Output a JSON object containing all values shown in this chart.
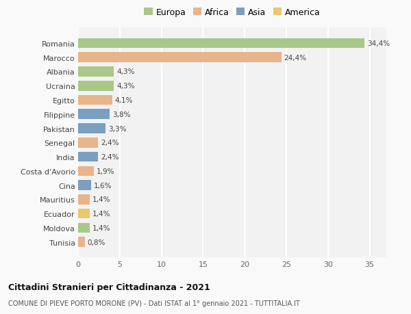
{
  "categories": [
    "Romania",
    "Marocco",
    "Albania",
    "Ucraina",
    "Egitto",
    "Filippine",
    "Pakistan",
    "Senegal",
    "India",
    "Costa d'Avorio",
    "Cina",
    "Mauritius",
    "Ecuador",
    "Moldova",
    "Tunisia"
  ],
  "values": [
    34.4,
    24.4,
    4.3,
    4.3,
    4.1,
    3.8,
    3.3,
    2.4,
    2.4,
    1.9,
    1.6,
    1.4,
    1.4,
    1.4,
    0.8
  ],
  "labels": [
    "34,4%",
    "24,4%",
    "4,3%",
    "4,3%",
    "4,1%",
    "3,8%",
    "3,3%",
    "2,4%",
    "2,4%",
    "1,9%",
    "1,6%",
    "1,4%",
    "1,4%",
    "1,4%",
    "0,8%"
  ],
  "colors": [
    "#a8c88a",
    "#e8b48a",
    "#a8c88a",
    "#a8c88a",
    "#e8b48a",
    "#7a9fc0",
    "#7a9fc0",
    "#e8b48a",
    "#7a9fc0",
    "#e8b48a",
    "#7a9fc0",
    "#e8b48a",
    "#e8c870",
    "#a8c88a",
    "#e8b48a"
  ],
  "legend_labels": [
    "Europa",
    "Africa",
    "Asia",
    "America"
  ],
  "legend_colors": [
    "#a8c88a",
    "#e8b48a",
    "#7a9fc0",
    "#e8c870"
  ],
  "title_main": "Cittadini Stranieri per Cittadinanza - 2021",
  "title_sub": "COMUNE DI PIEVE PORTO MORONE (PV) - Dati ISTAT al 1° gennaio 2021 - TUTTITALIA.IT",
  "xlim": [
    0,
    37
  ],
  "xticks": [
    0,
    5,
    10,
    15,
    20,
    25,
    30,
    35
  ],
  "bg_color": "#f9f9f9",
  "grid_color": "#e0e0e0",
  "bar_height": 0.7
}
